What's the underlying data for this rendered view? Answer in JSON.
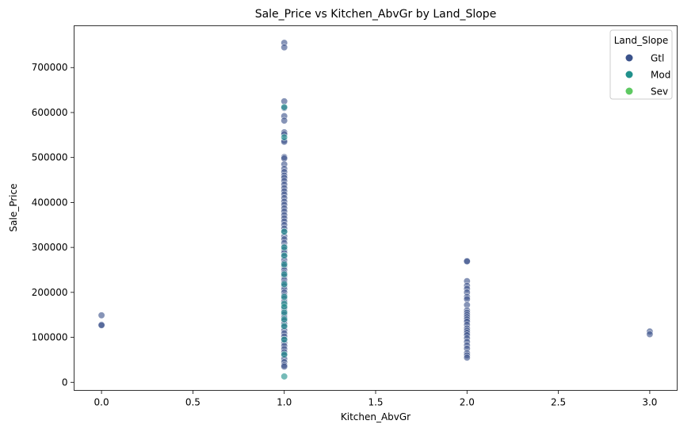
{
  "chart_data": {
    "type": "scatter",
    "title": "Sale_Price vs Kitchen_AbvGr by Land_Slope",
    "xlabel": "Kitchen_AbvGr",
    "ylabel": "Sale_Price",
    "xlim": [
      -0.15,
      3.15
    ],
    "ylim": [
      -18000,
      793000
    ],
    "xticks": [
      0.0,
      0.5,
      1.0,
      1.5,
      2.0,
      2.5,
      3.0
    ],
    "xtick_labels": [
      "0.0",
      "0.5",
      "1.0",
      "1.5",
      "2.0",
      "2.5",
      "3.0"
    ],
    "yticks": [
      0,
      100000,
      200000,
      300000,
      400000,
      500000,
      600000,
      700000
    ],
    "ytick_labels": [
      "0",
      "100000",
      "200000",
      "300000",
      "400000",
      "500000",
      "600000",
      "700000"
    ],
    "grid": false,
    "legend": {
      "title": "Land_Slope",
      "position": "top-right",
      "entries": [
        {
          "label": "Gtl",
          "color": "#3b528b"
        },
        {
          "label": "Mod",
          "color": "#21918c"
        },
        {
          "label": "Sev",
          "color": "#5ec962"
        }
      ]
    },
    "series": [
      {
        "name": "Gtl",
        "color": "#3b528b",
        "points": [
          [
            0,
            149000
          ],
          [
            0,
            128000
          ],
          [
            0,
            127000
          ],
          [
            1,
            755000
          ],
          [
            1,
            745000
          ],
          [
            1,
            625000
          ],
          [
            1,
            610000
          ],
          [
            1,
            592000
          ],
          [
            1,
            582000
          ],
          [
            1,
            556000
          ],
          [
            1,
            552000
          ],
          [
            1,
            538000
          ],
          [
            1,
            535000
          ],
          [
            1,
            501000
          ],
          [
            1,
            498000
          ],
          [
            1,
            485000
          ],
          [
            1,
            475000
          ],
          [
            1,
            468000
          ],
          [
            1,
            460000
          ],
          [
            1,
            455000
          ],
          [
            1,
            448000
          ],
          [
            1,
            440000
          ],
          [
            1,
            432000
          ],
          [
            1,
            425000
          ],
          [
            1,
            418000
          ],
          [
            1,
            410000
          ],
          [
            1,
            402000
          ],
          [
            1,
            395000
          ],
          [
            1,
            387000
          ],
          [
            1,
            380000
          ],
          [
            1,
            372000
          ],
          [
            1,
            365000
          ],
          [
            1,
            358000
          ],
          [
            1,
            350000
          ],
          [
            1,
            342000
          ],
          [
            1,
            335000
          ],
          [
            1,
            325000
          ],
          [
            1,
            318000
          ],
          [
            1,
            310000
          ],
          [
            1,
            302000
          ],
          [
            1,
            295000
          ],
          [
            1,
            288000
          ],
          [
            1,
            280000
          ],
          [
            1,
            272000
          ],
          [
            1,
            265000
          ],
          [
            1,
            258000
          ],
          [
            1,
            250000
          ],
          [
            1,
            243000
          ],
          [
            1,
            236000
          ],
          [
            1,
            228000
          ],
          [
            1,
            221000
          ],
          [
            1,
            214000
          ],
          [
            1,
            207000
          ],
          [
            1,
            200000
          ],
          [
            1,
            193000
          ],
          [
            1,
            186000
          ],
          [
            1,
            179000
          ],
          [
            1,
            172000
          ],
          [
            1,
            165000
          ],
          [
            1,
            158000
          ],
          [
            1,
            151000
          ],
          [
            1,
            144000
          ],
          [
            1,
            137000
          ],
          [
            1,
            130000
          ],
          [
            1,
            123000
          ],
          [
            1,
            116000
          ],
          [
            1,
            109000
          ],
          [
            1,
            102000
          ],
          [
            1,
            95000
          ],
          [
            1,
            88000
          ],
          [
            1,
            81000
          ],
          [
            1,
            74000
          ],
          [
            1,
            67000
          ],
          [
            1,
            60000
          ],
          [
            1,
            52000
          ],
          [
            1,
            45000
          ],
          [
            1,
            38000
          ],
          [
            1,
            35000
          ],
          [
            2,
            270000
          ],
          [
            2,
            269000
          ],
          [
            2,
            225000
          ],
          [
            2,
            215000
          ],
          [
            2,
            208000
          ],
          [
            2,
            200000
          ],
          [
            2,
            190000
          ],
          [
            2,
            185000
          ],
          [
            2,
            172000
          ],
          [
            2,
            160000
          ],
          [
            2,
            155000
          ],
          [
            2,
            150000
          ],
          [
            2,
            145000
          ],
          [
            2,
            140000
          ],
          [
            2,
            135000
          ],
          [
            2,
            128000
          ],
          [
            2,
            120000
          ],
          [
            2,
            115000
          ],
          [
            2,
            110000
          ],
          [
            2,
            105000
          ],
          [
            2,
            98000
          ],
          [
            2,
            90000
          ],
          [
            2,
            82000
          ],
          [
            2,
            75000
          ],
          [
            2,
            65000
          ],
          [
            2,
            60000
          ],
          [
            2,
            55000
          ],
          [
            3,
            113000
          ],
          [
            3,
            107000
          ]
        ]
      },
      {
        "name": "Mod",
        "color": "#21918c",
        "points": [
          [
            1,
            612000
          ],
          [
            1,
            545000
          ],
          [
            1,
            335000
          ],
          [
            1,
            300000
          ],
          [
            1,
            282000
          ],
          [
            1,
            262000
          ],
          [
            1,
            240000
          ],
          [
            1,
            218000
          ],
          [
            1,
            190000
          ],
          [
            1,
            175000
          ],
          [
            1,
            168000
          ],
          [
            1,
            155000
          ],
          [
            1,
            140000
          ],
          [
            1,
            125000
          ],
          [
            1,
            95000
          ],
          [
            1,
            62000
          ],
          [
            1,
            13000
          ]
        ]
      },
      {
        "name": "Sev",
        "color": "#5ec962",
        "points": []
      }
    ]
  }
}
